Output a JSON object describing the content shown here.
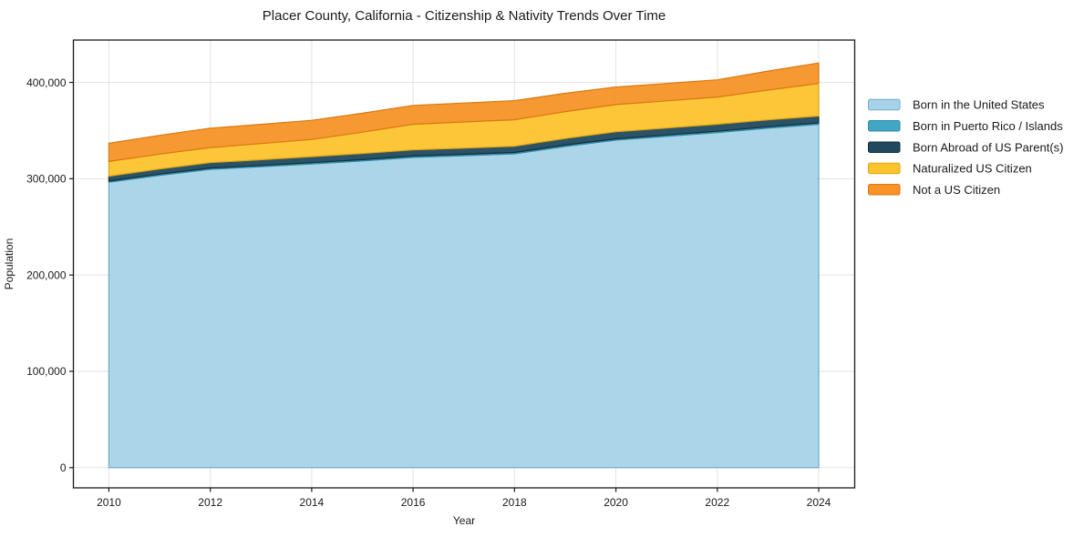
{
  "chart_data": {
    "type": "area",
    "stacked": true,
    "title": "Placer County, California - Citizenship & Nativity Trends Over Time",
    "xlabel": "Year",
    "ylabel": "Population",
    "grid": true,
    "legend_position": "right-outside",
    "background_color": "#ffffff",
    "grid_color": "#e3e3e3",
    "frame_color": "#1a1a1a",
    "text_color": "#1a1a1a",
    "x": [
      2010,
      2011,
      2012,
      2013,
      2014,
      2015,
      2016,
      2017,
      2018,
      2019,
      2020,
      2021,
      2022,
      2023,
      2024
    ],
    "series": [
      {
        "name": "Born in the United States",
        "color": "#a6d3e8",
        "edge_color": "#6ca9cb",
        "values": [
          296400,
          303500,
          309800,
          312500,
          315400,
          318500,
          322200,
          324000,
          325900,
          333500,
          340100,
          344000,
          347900,
          352500,
          356500
        ]
      },
      {
        "name": "Born in Puerto Rico / Islands",
        "color": "#41a7c5",
        "edge_color": "#2d8aa5",
        "values": [
          1200,
          1250,
          1300,
          1300,
          1300,
          1350,
          1400,
          1400,
          1400,
          1400,
          1400,
          1400,
          1400,
          1450,
          1500
        ]
      },
      {
        "name": "Born Abroad of US Parent(s)",
        "color": "#20495e",
        "edge_color": "#132e3c",
        "values": [
          5000,
          5300,
          5600,
          5900,
          6200,
          6250,
          6300,
          6350,
          6400,
          6800,
          7200,
          7250,
          7300,
          7200,
          7100
        ]
      },
      {
        "name": "Naturalized US Citizen",
        "color": "#fcc32d",
        "edge_color": "#dda414",
        "values": [
          15300,
          15500,
          15700,
          16800,
          17900,
          22300,
          26700,
          27200,
          27600,
          28000,
          28300,
          28250,
          28200,
          31000,
          33800
        ]
      },
      {
        "name": "Not a US Citizen",
        "color": "#f79327",
        "edge_color": "#d97a12",
        "values": [
          18900,
          19500,
          20100,
          20000,
          19800,
          19650,
          19500,
          19650,
          19800,
          19000,
          18200,
          18050,
          17900,
          19600,
          21300
        ]
      }
    ],
    "xticks": {
      "values": [
        2010,
        2012,
        2014,
        2016,
        2018,
        2020,
        2022,
        2024
      ],
      "labels": [
        "2010",
        "2012",
        "2014",
        "2016",
        "2018",
        "2020",
        "2022",
        "2024"
      ]
    },
    "yticks": {
      "values": [
        0,
        100000,
        200000,
        300000,
        400000
      ],
      "labels": [
        "0",
        "100,000",
        "200,000",
        "300,000",
        "400,000"
      ]
    },
    "xlim": [
      2009.3,
      2024.71
    ],
    "ylim": [
      -21000,
      444000
    ]
  }
}
